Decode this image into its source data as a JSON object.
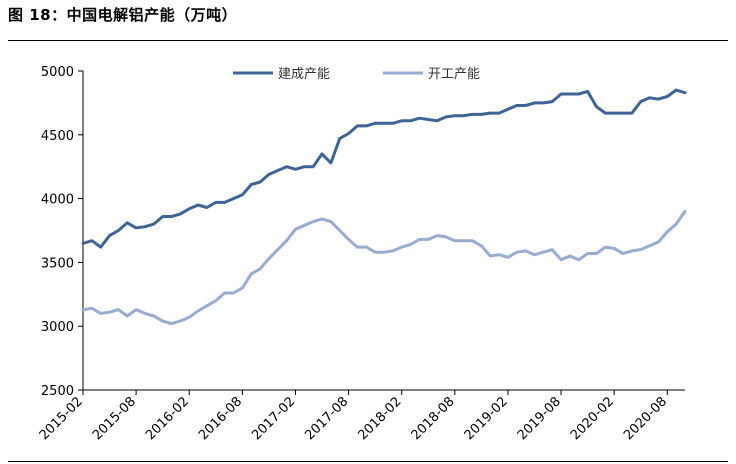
{
  "figure": {
    "title": "图 18：中国电解铝产能（万吨）"
  },
  "chart_data": {
    "type": "line",
    "title": "图 18：中国电解铝产能（万吨）",
    "xlabel": "",
    "ylabel": "",
    "ylim": [
      2500,
      5000
    ],
    "yticks": [
      2500,
      3000,
      3500,
      4000,
      4500,
      5000
    ],
    "xtick_labels": [
      "2015-02",
      "2015-08",
      "2016-02",
      "2016-08",
      "2017-02",
      "2017-08",
      "2018-02",
      "2018-08",
      "2019-02",
      "2019-08",
      "2020-02",
      "2020-08"
    ],
    "legend_position": "top-center",
    "grid": false,
    "x": [
      "2015-02",
      "2015-03",
      "2015-04",
      "2015-05",
      "2015-06",
      "2015-07",
      "2015-08",
      "2015-09",
      "2015-10",
      "2015-11",
      "2015-12",
      "2016-01",
      "2016-02",
      "2016-03",
      "2016-04",
      "2016-05",
      "2016-06",
      "2016-07",
      "2016-08",
      "2016-09",
      "2016-10",
      "2016-11",
      "2016-12",
      "2017-01",
      "2017-02",
      "2017-03",
      "2017-04",
      "2017-05",
      "2017-06",
      "2017-07",
      "2017-08",
      "2017-09",
      "2017-10",
      "2017-11",
      "2017-12",
      "2018-01",
      "2018-02",
      "2018-03",
      "2018-04",
      "2018-05",
      "2018-06",
      "2018-07",
      "2018-08",
      "2018-09",
      "2018-10",
      "2018-11",
      "2018-12",
      "2019-01",
      "2019-02",
      "2019-03",
      "2019-04",
      "2019-05",
      "2019-06",
      "2019-07",
      "2019-08",
      "2019-09",
      "2019-10",
      "2019-11",
      "2019-12",
      "2020-01",
      "2020-02",
      "2020-03",
      "2020-04",
      "2020-05",
      "2020-06",
      "2020-07",
      "2020-08",
      "2020-09",
      "2020-10"
    ],
    "series": [
      {
        "name": "建成产能",
        "color": "#3d6496",
        "values": [
          3650,
          3670,
          3620,
          3710,
          3750,
          3810,
          3770,
          3780,
          3800,
          3860,
          3860,
          3880,
          3920,
          3950,
          3930,
          3970,
          3970,
          4000,
          4030,
          4110,
          4130,
          4190,
          4220,
          4250,
          4230,
          4250,
          4250,
          4350,
          4280,
          4470,
          4510,
          4570,
          4570,
          4590,
          4590,
          4590,
          4610,
          4610,
          4630,
          4620,
          4610,
          4640,
          4650,
          4650,
          4660,
          4660,
          4670,
          4670,
          4700,
          4730,
          4730,
          4750,
          4750,
          4760,
          4820,
          4820,
          4820,
          4840,
          4720,
          4670,
          4670,
          4670,
          4670,
          4760,
          4790,
          4780,
          4800,
          4850,
          4830
        ]
      },
      {
        "name": "开工产能",
        "color": "#97acd3",
        "values": [
          3130,
          3140,
          3100,
          3110,
          3130,
          3080,
          3130,
          3100,
          3080,
          3040,
          3020,
          3040,
          3070,
          3120,
          3160,
          3200,
          3260,
          3260,
          3300,
          3410,
          3450,
          3530,
          3600,
          3670,
          3760,
          3790,
          3820,
          3840,
          3820,
          3750,
          3680,
          3620,
          3620,
          3580,
          3580,
          3590,
          3620,
          3640,
          3680,
          3680,
          3710,
          3700,
          3670,
          3670,
          3670,
          3630,
          3550,
          3560,
          3540,
          3580,
          3590,
          3560,
          3580,
          3600,
          3520,
          3550,
          3520,
          3570,
          3570,
          3620,
          3610,
          3570,
          3590,
          3600,
          3630,
          3660,
          3740,
          3800,
          3900
        ]
      }
    ]
  }
}
